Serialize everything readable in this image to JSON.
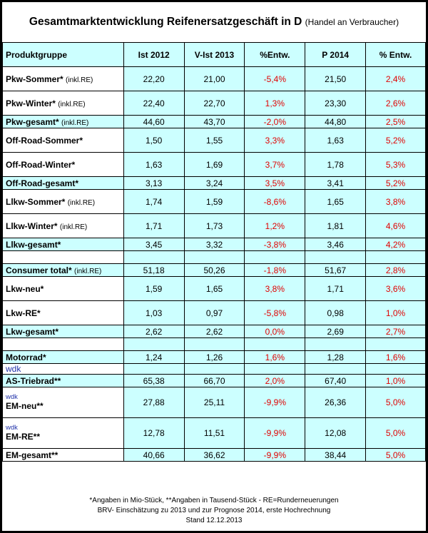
{
  "title": {
    "main": "Gesamtmarktentwicklung Reifenersatzgeschäft in D",
    "sub": "(Handel an Verbraucher)"
  },
  "headers": [
    "Produktgruppe",
    "Ist 2012",
    "V-Ist 2013",
    "%Entw.",
    "P 2014",
    "% Entw."
  ],
  "rows": {
    "pkw_sommer": {
      "label": "Pkw-Sommer*",
      "note": "(inkl.RE)",
      "v": [
        "22,20",
        "21,00",
        "-5,4%",
        "21,50",
        "2,4%"
      ]
    },
    "pkw_winter": {
      "label": "Pkw-Winter*",
      "note": "(inkl.RE)",
      "v": [
        "22,40",
        "22,70",
        "1,3%",
        "23,30",
        "2,6%"
      ]
    },
    "pkw_gesamt": {
      "label": "Pkw-gesamt*",
      "note": "(inkl.RE)",
      "v": [
        "44,60",
        "43,70",
        "-2,0%",
        "44,80",
        "2,5%"
      ]
    },
    "offroad_sommer": {
      "label": "Off-Road-Sommer*",
      "v": [
        "1,50",
        "1,55",
        "3,3%",
        "1,63",
        "5,2%"
      ]
    },
    "offroad_winter": {
      "label": "Off-Road-Winter*",
      "v": [
        "1,63",
        "1,69",
        "3,7%",
        "1,78",
        "5,3%"
      ]
    },
    "offroad_gesamt": {
      "label": "Off-Road-gesamt*",
      "v": [
        "3,13",
        "3,24",
        "3,5%",
        "3,41",
        "5,2%"
      ]
    },
    "llkw_sommer": {
      "label": "Llkw-Sommer*",
      "note": "(inkl.RE)",
      "v": [
        "1,74",
        "1,59",
        "-8,6%",
        "1,65",
        "3,8%"
      ]
    },
    "llkw_winter": {
      "label": "Llkw-Winter*",
      "note": "(inkl.RE)",
      "v": [
        "1,71",
        "1,73",
        "1,2%",
        "1,81",
        "4,6%"
      ]
    },
    "llkw_gesamt": {
      "label": "Llkw-gesamt*",
      "v": [
        "3,45",
        "3,32",
        "-3,8%",
        "3,46",
        "4,2%"
      ]
    },
    "consumer_total": {
      "label": "Consumer total*",
      "note": "(inkl.RE)",
      "v": [
        "51,18",
        "50,26",
        "-1,8%",
        "51,67",
        "2,8%"
      ]
    },
    "lkw_neu": {
      "label": "Lkw-neu*",
      "v": [
        "1,59",
        "1,65",
        "3,8%",
        "1,71",
        "3,6%"
      ]
    },
    "lkw_re": {
      "label": "Lkw-RE*",
      "v": [
        "1,03",
        "0,97",
        "-5,8%",
        "0,98",
        "1,0%"
      ]
    },
    "lkw_gesamt": {
      "label": "Lkw-gesamt*",
      "v": [
        "2,62",
        "2,62",
        "0,0%",
        "2,69",
        "2,7%"
      ]
    },
    "motorrad": {
      "label": "Motorrad*",
      "v": [
        "1,24",
        "1,26",
        "1,6%",
        "1,28",
        "1,6%"
      ]
    },
    "as_triebrad": {
      "label": "AS-Triebrad**",
      "v": [
        "65,38",
        "66,70",
        "2,0%",
        "67,40",
        "1,0%"
      ]
    },
    "em_neu": {
      "label": "EM-neu**",
      "v": [
        "27,88",
        "25,11",
        "-9,9%",
        "26,36",
        "5,0%"
      ]
    },
    "em_re": {
      "label": "EM-RE**",
      "v": [
        "12,78",
        "11,51",
        "-9,9%",
        "12,08",
        "5,0%"
      ]
    },
    "em_gesamt": {
      "label": "EM-gesamt**",
      "v": [
        "40,66",
        "36,62",
        "-9,9%",
        "38,44",
        "5,0%"
      ]
    }
  },
  "wdk": "wdk",
  "notes": {
    "line1": "*Angaben in Mio-Stück, **Angaben in Tausend-Stück - RE=Runderneuerungen",
    "line2": "BRV- Einschätzung zu 2013 und zur Prognose 2014, erste Hochrechnung",
    "line3": "Stand 12.12.2013"
  },
  "colors": {
    "cyan": "#ccffff",
    "negative_red": "#e00000",
    "wdk_blue": "#2233aa"
  }
}
